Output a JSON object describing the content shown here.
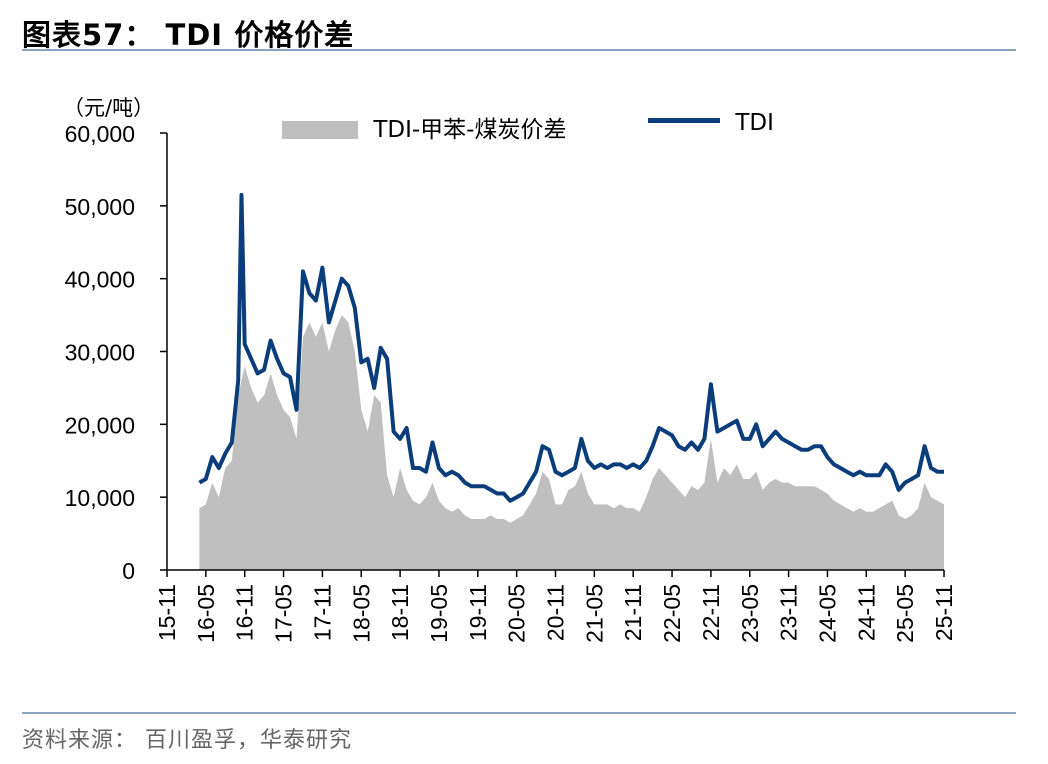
{
  "figure": {
    "title": "图表57： TDI 价格价差",
    "source": "资料来源：  百川盈孚，华泰研究"
  },
  "chart_data": {
    "type": "line",
    "unit_label": "（元/吨）",
    "xlabel": "",
    "ylabel": "",
    "ylim": [
      0,
      60000
    ],
    "y_ticks": [
      "0",
      "10,000",
      "20,000",
      "30,000",
      "40,000",
      "50,000",
      "60,000"
    ],
    "x_ticks": [
      "15-11",
      "16-05",
      "16-11",
      "17-05",
      "17-11",
      "18-05",
      "18-11",
      "19-05",
      "19-11",
      "20-05",
      "20-11",
      "21-05",
      "21-11",
      "22-05",
      "22-11",
      "23-05",
      "23-11",
      "24-05",
      "24-11",
      "25-05",
      "25-11"
    ],
    "legend_position": "top",
    "grid": false,
    "series": [
      {
        "name": "TDI-甲苯-煤炭价差",
        "style": "area",
        "color": "#bfbfbf",
        "points": [
          [
            "16-04",
            8500
          ],
          [
            "16-05",
            9000
          ],
          [
            "16-06",
            12000
          ],
          [
            "16-07",
            10000
          ],
          [
            "16-08",
            14000
          ],
          [
            "16-09",
            15000
          ],
          [
            "16-10",
            24000
          ],
          [
            "16-11",
            28000
          ],
          [
            "16-12",
            25000
          ],
          [
            "17-01",
            23000
          ],
          [
            "17-02",
            24000
          ],
          [
            "17-03",
            27000
          ],
          [
            "17-04",
            24000
          ],
          [
            "17-05",
            22000
          ],
          [
            "17-06",
            21000
          ],
          [
            "17-07",
            18000
          ],
          [
            "17-08",
            32000
          ],
          [
            "17-09",
            34000
          ],
          [
            "17-10",
            32000
          ],
          [
            "17-11",
            34000
          ],
          [
            "17-12",
            30000
          ],
          [
            "18-01",
            33000
          ],
          [
            "18-02",
            35000
          ],
          [
            "18-03",
            34000
          ],
          [
            "18-04",
            30000
          ],
          [
            "18-05",
            22000
          ],
          [
            "18-06",
            19000
          ],
          [
            "18-07",
            24000
          ],
          [
            "18-08",
            23000
          ],
          [
            "18-09",
            13000
          ],
          [
            "18-10",
            10000
          ],
          [
            "18-11",
            14000
          ],
          [
            "18-12",
            11000
          ],
          [
            "19-01",
            9500
          ],
          [
            "19-02",
            9000
          ],
          [
            "19-03",
            10000
          ],
          [
            "19-04",
            12000
          ],
          [
            "19-05",
            9500
          ],
          [
            "19-06",
            8500
          ],
          [
            "19-07",
            8000
          ],
          [
            "19-08",
            8500
          ],
          [
            "19-09",
            7500
          ],
          [
            "19-10",
            7000
          ],
          [
            "19-11",
            7000
          ],
          [
            "19-12",
            7000
          ],
          [
            "20-01",
            7500
          ],
          [
            "20-02",
            7000
          ],
          [
            "20-03",
            7000
          ],
          [
            "20-04",
            6500
          ],
          [
            "20-05",
            7000
          ],
          [
            "20-06",
            7500
          ],
          [
            "20-07",
            9000
          ],
          [
            "20-08",
            10500
          ],
          [
            "20-09",
            13500
          ],
          [
            "20-10",
            12500
          ],
          [
            "20-11",
            9000
          ],
          [
            "20-12",
            9000
          ],
          [
            "21-01",
            11000
          ],
          [
            "21-02",
            11500
          ],
          [
            "21-03",
            13500
          ],
          [
            "21-04",
            10500
          ],
          [
            "21-05",
            9000
          ],
          [
            "21-06",
            9000
          ],
          [
            "21-07",
            9000
          ],
          [
            "21-08",
            8500
          ],
          [
            "21-09",
            9000
          ],
          [
            "21-10",
            8500
          ],
          [
            "21-11",
            8500
          ],
          [
            "21-12",
            8000
          ],
          [
            "22-01",
            10000
          ],
          [
            "22-02",
            12500
          ],
          [
            "22-03",
            14000
          ],
          [
            "22-04",
            13000
          ],
          [
            "22-05",
            12000
          ],
          [
            "22-06",
            11000
          ],
          [
            "22-07",
            10000
          ],
          [
            "22-08",
            11500
          ],
          [
            "22-09",
            11000
          ],
          [
            "22-10",
            12000
          ],
          [
            "22-11",
            18000
          ],
          [
            "22-12",
            12000
          ],
          [
            "23-01",
            14000
          ],
          [
            "23-02",
            13000
          ],
          [
            "23-03",
            14500
          ],
          [
            "23-04",
            12500
          ],
          [
            "23-05",
            12500
          ],
          [
            "23-06",
            13500
          ],
          [
            "23-07",
            11000
          ],
          [
            "23-08",
            12000
          ],
          [
            "23-09",
            12500
          ],
          [
            "23-10",
            12000
          ],
          [
            "23-11",
            12000
          ],
          [
            "23-12",
            11500
          ],
          [
            "24-01",
            11500
          ],
          [
            "24-02",
            11500
          ],
          [
            "24-03",
            11500
          ],
          [
            "24-04",
            11000
          ],
          [
            "24-05",
            10500
          ],
          [
            "24-06",
            9500
          ],
          [
            "24-07",
            9000
          ],
          [
            "24-08",
            8500
          ],
          [
            "24-09",
            8000
          ],
          [
            "24-10",
            8500
          ],
          [
            "24-11",
            8000
          ],
          [
            "24-12",
            8000
          ],
          [
            "25-01",
            8500
          ],
          [
            "25-02",
            9000
          ],
          [
            "25-03",
            9500
          ],
          [
            "25-04",
            7500
          ],
          [
            "25-05",
            7000
          ],
          [
            "25-06",
            7500
          ],
          [
            "25-07",
            8500
          ],
          [
            "25-08",
            12000
          ],
          [
            "25-09",
            10000
          ],
          [
            "25-10",
            9500
          ],
          [
            "25-11",
            9000
          ]
        ]
      },
      {
        "name": "TDI",
        "style": "line",
        "color": "#0a3d7a",
        "points": [
          [
            "16-04",
            12000
          ],
          [
            "16-05",
            12500
          ],
          [
            "16-06",
            15500
          ],
          [
            "16-07",
            14000
          ],
          [
            "16-08",
            16000
          ],
          [
            "16-09",
            17500
          ],
          [
            "16-10",
            26000
          ],
          [
            "16-10b",
            51500
          ],
          [
            "16-11",
            31000
          ],
          [
            "16-12",
            29000
          ],
          [
            "17-01",
            27000
          ],
          [
            "17-02",
            27500
          ],
          [
            "17-03",
            31500
          ],
          [
            "17-04",
            29000
          ],
          [
            "17-05",
            27000
          ],
          [
            "17-06",
            26500
          ],
          [
            "17-07",
            22000
          ],
          [
            "17-08",
            41000
          ],
          [
            "17-09",
            38000
          ],
          [
            "17-10",
            37000
          ],
          [
            "17-11",
            41500
          ],
          [
            "17-12",
            34000
          ],
          [
            "18-01",
            37000
          ],
          [
            "18-02",
            40000
          ],
          [
            "18-03",
            39000
          ],
          [
            "18-04",
            36000
          ],
          [
            "18-05",
            28500
          ],
          [
            "18-06",
            29000
          ],
          [
            "18-07",
            25000
          ],
          [
            "18-08",
            30500
          ],
          [
            "18-09",
            29000
          ],
          [
            "18-10",
            19000
          ],
          [
            "18-11",
            18000
          ],
          [
            "18-12",
            19500
          ],
          [
            "19-01",
            14000
          ],
          [
            "19-02",
            14000
          ],
          [
            "19-03",
            13500
          ],
          [
            "19-04",
            17500
          ],
          [
            "19-05",
            14000
          ],
          [
            "19-06",
            13000
          ],
          [
            "19-07",
            13500
          ],
          [
            "19-08",
            13000
          ],
          [
            "19-09",
            12000
          ],
          [
            "19-10",
            11500
          ],
          [
            "19-11",
            11500
          ],
          [
            "19-12",
            11500
          ],
          [
            "20-01",
            11000
          ],
          [
            "20-02",
            10500
          ],
          [
            "20-03",
            10500
          ],
          [
            "20-04",
            9500
          ],
          [
            "20-05",
            10000
          ],
          [
            "20-06",
            10500
          ],
          [
            "20-07",
            12000
          ],
          [
            "20-08",
            13500
          ],
          [
            "20-09",
            17000
          ],
          [
            "20-10",
            16500
          ],
          [
            "20-11",
            13500
          ],
          [
            "20-12",
            13000
          ],
          [
            "21-01",
            13500
          ],
          [
            "21-02",
            14000
          ],
          [
            "21-03",
            18000
          ],
          [
            "21-04",
            15000
          ],
          [
            "21-05",
            14000
          ],
          [
            "21-06",
            14500
          ],
          [
            "21-07",
            14000
          ],
          [
            "21-08",
            14500
          ],
          [
            "21-09",
            14500
          ],
          [
            "21-10",
            14000
          ],
          [
            "21-11",
            14500
          ],
          [
            "21-12",
            14000
          ],
          [
            "22-01",
            15000
          ],
          [
            "22-02",
            17000
          ],
          [
            "22-03",
            19500
          ],
          [
            "22-04",
            19000
          ],
          [
            "22-05",
            18500
          ],
          [
            "22-06",
            17000
          ],
          [
            "22-07",
            16500
          ],
          [
            "22-08",
            17500
          ],
          [
            "22-09",
            16500
          ],
          [
            "22-10",
            18000
          ],
          [
            "22-11",
            25500
          ],
          [
            "22-12",
            19000
          ],
          [
            "23-01",
            19500
          ],
          [
            "23-02",
            20000
          ],
          [
            "23-03",
            20500
          ],
          [
            "23-04",
            18000
          ],
          [
            "23-05",
            18000
          ],
          [
            "23-06",
            20000
          ],
          [
            "23-07",
            17000
          ],
          [
            "23-08",
            18000
          ],
          [
            "23-09",
            19000
          ],
          [
            "23-10",
            18000
          ],
          [
            "23-11",
            17500
          ],
          [
            "23-12",
            17000
          ],
          [
            "24-01",
            16500
          ],
          [
            "24-02",
            16500
          ],
          [
            "24-03",
            17000
          ],
          [
            "24-04",
            17000
          ],
          [
            "24-05",
            15500
          ],
          [
            "24-06",
            14500
          ],
          [
            "24-07",
            14000
          ],
          [
            "24-08",
            13500
          ],
          [
            "24-09",
            13000
          ],
          [
            "24-10",
            13500
          ],
          [
            "24-11",
            13000
          ],
          [
            "24-12",
            13000
          ],
          [
            "25-01",
            13000
          ],
          [
            "25-02",
            14500
          ],
          [
            "25-03",
            13500
          ],
          [
            "25-04",
            11000
          ],
          [
            "25-05",
            12000
          ],
          [
            "25-06",
            12500
          ],
          [
            "25-07",
            13000
          ],
          [
            "25-08",
            17000
          ],
          [
            "25-09",
            14000
          ],
          [
            "25-10",
            13500
          ],
          [
            "25-11",
            13500
          ]
        ]
      }
    ]
  }
}
